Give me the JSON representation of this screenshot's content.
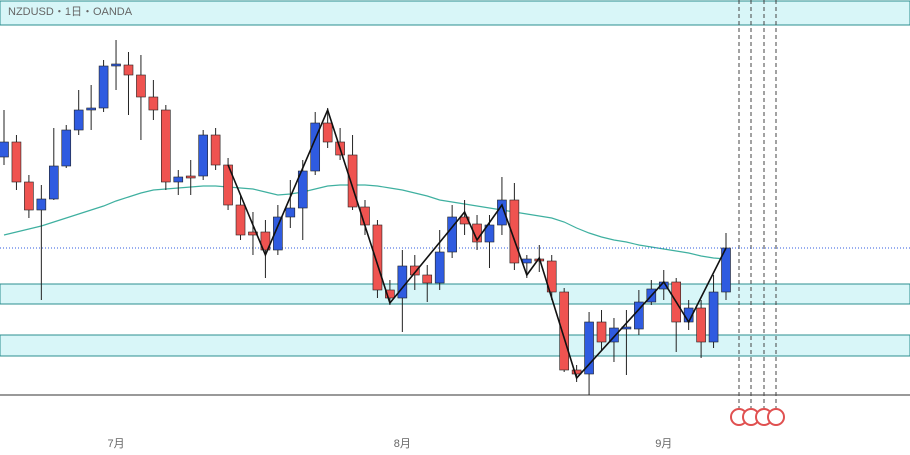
{
  "chart_data": {
    "type": "candlestick",
    "title": "NZDUSD・1日・OANDA",
    "categories": [
      null,
      null,
      null,
      null,
      null,
      null,
      null,
      null,
      null,
      "7月",
      null,
      null,
      null,
      null,
      null,
      null,
      null,
      null,
      null,
      null,
      null,
      null,
      null,
      null,
      null,
      null,
      null,
      null,
      null,
      null,
      null,
      null,
      "8月",
      null,
      null,
      null,
      null,
      null,
      null,
      null,
      null,
      null,
      null,
      null,
      null,
      null,
      null,
      null,
      null,
      null,
      null,
      null,
      null,
      "9月",
      null,
      null,
      null,
      null,
      null
    ],
    "open": [
      0.6043,
      0.6058,
      0.6018,
      0.599,
      0.6001,
      0.6034,
      0.607,
      0.609,
      0.6092,
      0.6134,
      0.6135,
      0.6125,
      0.6103,
      0.609,
      0.6018,
      0.6024,
      0.6024,
      0.6065,
      0.6035,
      0.5995,
      0.5968,
      0.5968,
      0.595,
      0.5983,
      0.5992,
      0.6029,
      0.6077,
      0.6058,
      0.6045,
      0.5993,
      0.5975,
      0.591,
      0.5902,
      0.5934,
      0.5925,
      0.5917,
      0.5948,
      0.5983,
      0.5976,
      0.5958,
      0.5975,
      0.6,
      0.5937,
      0.5941,
      0.5939,
      0.5908,
      0.583,
      0.5826,
      0.5878,
      0.5858,
      0.5871,
      0.5871,
      0.5898,
      0.5911,
      0.5918,
      0.5878,
      0.5892,
      0.5858,
      0.5908
    ],
    "high": [
      0.609,
      0.6065,
      0.6025,
      0.6015,
      0.6072,
      0.6075,
      0.611,
      0.6115,
      0.614,
      0.616,
      0.6148,
      0.6145,
      0.612,
      0.6095,
      0.603,
      0.604,
      0.607,
      0.6072,
      0.6042,
      0.6005,
      0.5988,
      0.598,
      0.5995,
      0.602,
      0.604,
      0.6088,
      0.6092,
      0.6072,
      0.6065,
      0.6,
      0.598,
      0.592,
      0.595,
      0.5945,
      0.5935,
      0.597,
      0.5995,
      0.6,
      0.5985,
      0.5985,
      0.6023,
      0.6017,
      0.5945,
      0.5955,
      0.5945,
      0.5912,
      0.5835,
      0.5888,
      0.589,
      0.5882,
      0.589,
      0.591,
      0.592,
      0.593,
      0.5922,
      0.59,
      0.59,
      0.5925,
      0.5967
    ],
    "low": [
      0.6035,
      0.601,
      0.5982,
      0.59,
      0.6,
      0.6032,
      0.6065,
      0.607,
      0.6088,
      0.611,
      0.6085,
      0.606,
      0.608,
      0.601,
      0.6005,
      0.6005,
      0.602,
      0.603,
      0.599,
      0.596,
      0.5945,
      0.5922,
      0.5945,
      0.5972,
      0.596,
      0.6025,
      0.6052,
      0.604,
      0.599,
      0.5965,
      0.5902,
      0.5895,
      0.5868,
      0.591,
      0.5898,
      0.591,
      0.5942,
      0.5965,
      0.595,
      0.5932,
      0.5965,
      0.593,
      0.5922,
      0.5928,
      0.59,
      0.5828,
      0.5818,
      0.5805,
      0.585,
      0.5838,
      0.5825,
      0.5865,
      0.5895,
      0.59,
      0.5848,
      0.587,
      0.5842,
      0.5852,
      0.59
    ],
    "close": [
      0.6058,
      0.6018,
      0.599,
      0.6001,
      0.6034,
      0.607,
      0.609,
      0.6092,
      0.6134,
      0.6136,
      0.6125,
      0.6103,
      0.609,
      0.6018,
      0.6023,
      0.6022,
      0.6065,
      0.6035,
      0.5995,
      0.5965,
      0.5965,
      0.595,
      0.5983,
      0.5992,
      0.6029,
      0.6077,
      0.6058,
      0.6045,
      0.5993,
      0.5975,
      0.591,
      0.5902,
      0.5934,
      0.5925,
      0.5917,
      0.5948,
      0.5983,
      0.5976,
      0.5958,
      0.5975,
      0.6,
      0.5937,
      0.5941,
      0.5939,
      0.5908,
      0.583,
      0.5826,
      0.5878,
      0.5858,
      0.5872,
      0.5873,
      0.5898,
      0.5911,
      0.5918,
      0.5878,
      0.5892,
      0.5858,
      0.5908,
      0.5952
    ],
    "up_color": "#2f5be0",
    "down_color": "#ef5350",
    "ma": {
      "color": "#3fb0a0",
      "values": [
        0.5965,
        0.5968,
        0.5971,
        0.5974,
        0.5978,
        0.5982,
        0.5986,
        0.599,
        0.5994,
        0.5999,
        0.6003,
        0.6007,
        0.601,
        0.6011,
        0.6012,
        0.6013,
        0.6014,
        0.6014,
        0.6013,
        0.6012,
        0.6011,
        0.6008,
        0.6005,
        0.6006,
        0.6008,
        0.6011,
        0.6014,
        0.6015,
        0.6015,
        0.6015,
        0.6014,
        0.6012,
        0.601,
        0.6007,
        0.6004,
        0.6,
        0.5998,
        0.5996,
        0.5994,
        0.5992,
        0.599,
        0.5988,
        0.5986,
        0.5984,
        0.5982,
        0.5978,
        0.5972,
        0.5967,
        0.5963,
        0.596,
        0.5958,
        0.5955,
        0.5953,
        0.5951,
        0.5949,
        0.5947,
        0.5944,
        0.5942,
        0.5941
      ]
    },
    "zigzag": {
      "color": "#111111",
      "x": [
        18,
        21,
        26,
        31,
        37,
        38,
        40,
        42,
        43,
        46,
        53,
        55,
        58
      ],
      "values": [
        0.6035,
        0.5945,
        0.609,
        0.5897,
        0.5988,
        0.596,
        0.5995,
        0.5925,
        0.5942,
        0.5822,
        0.5918,
        0.5878,
        0.5952
      ]
    },
    "zones": [
      [
        0.6175,
        0.6199
      ],
      [
        0.5896,
        0.5916
      ],
      [
        0.5844,
        0.5865
      ]
    ],
    "zone_color": "#d8f6f8",
    "ylim": [
      0.58,
      0.62
    ]
  }
}
